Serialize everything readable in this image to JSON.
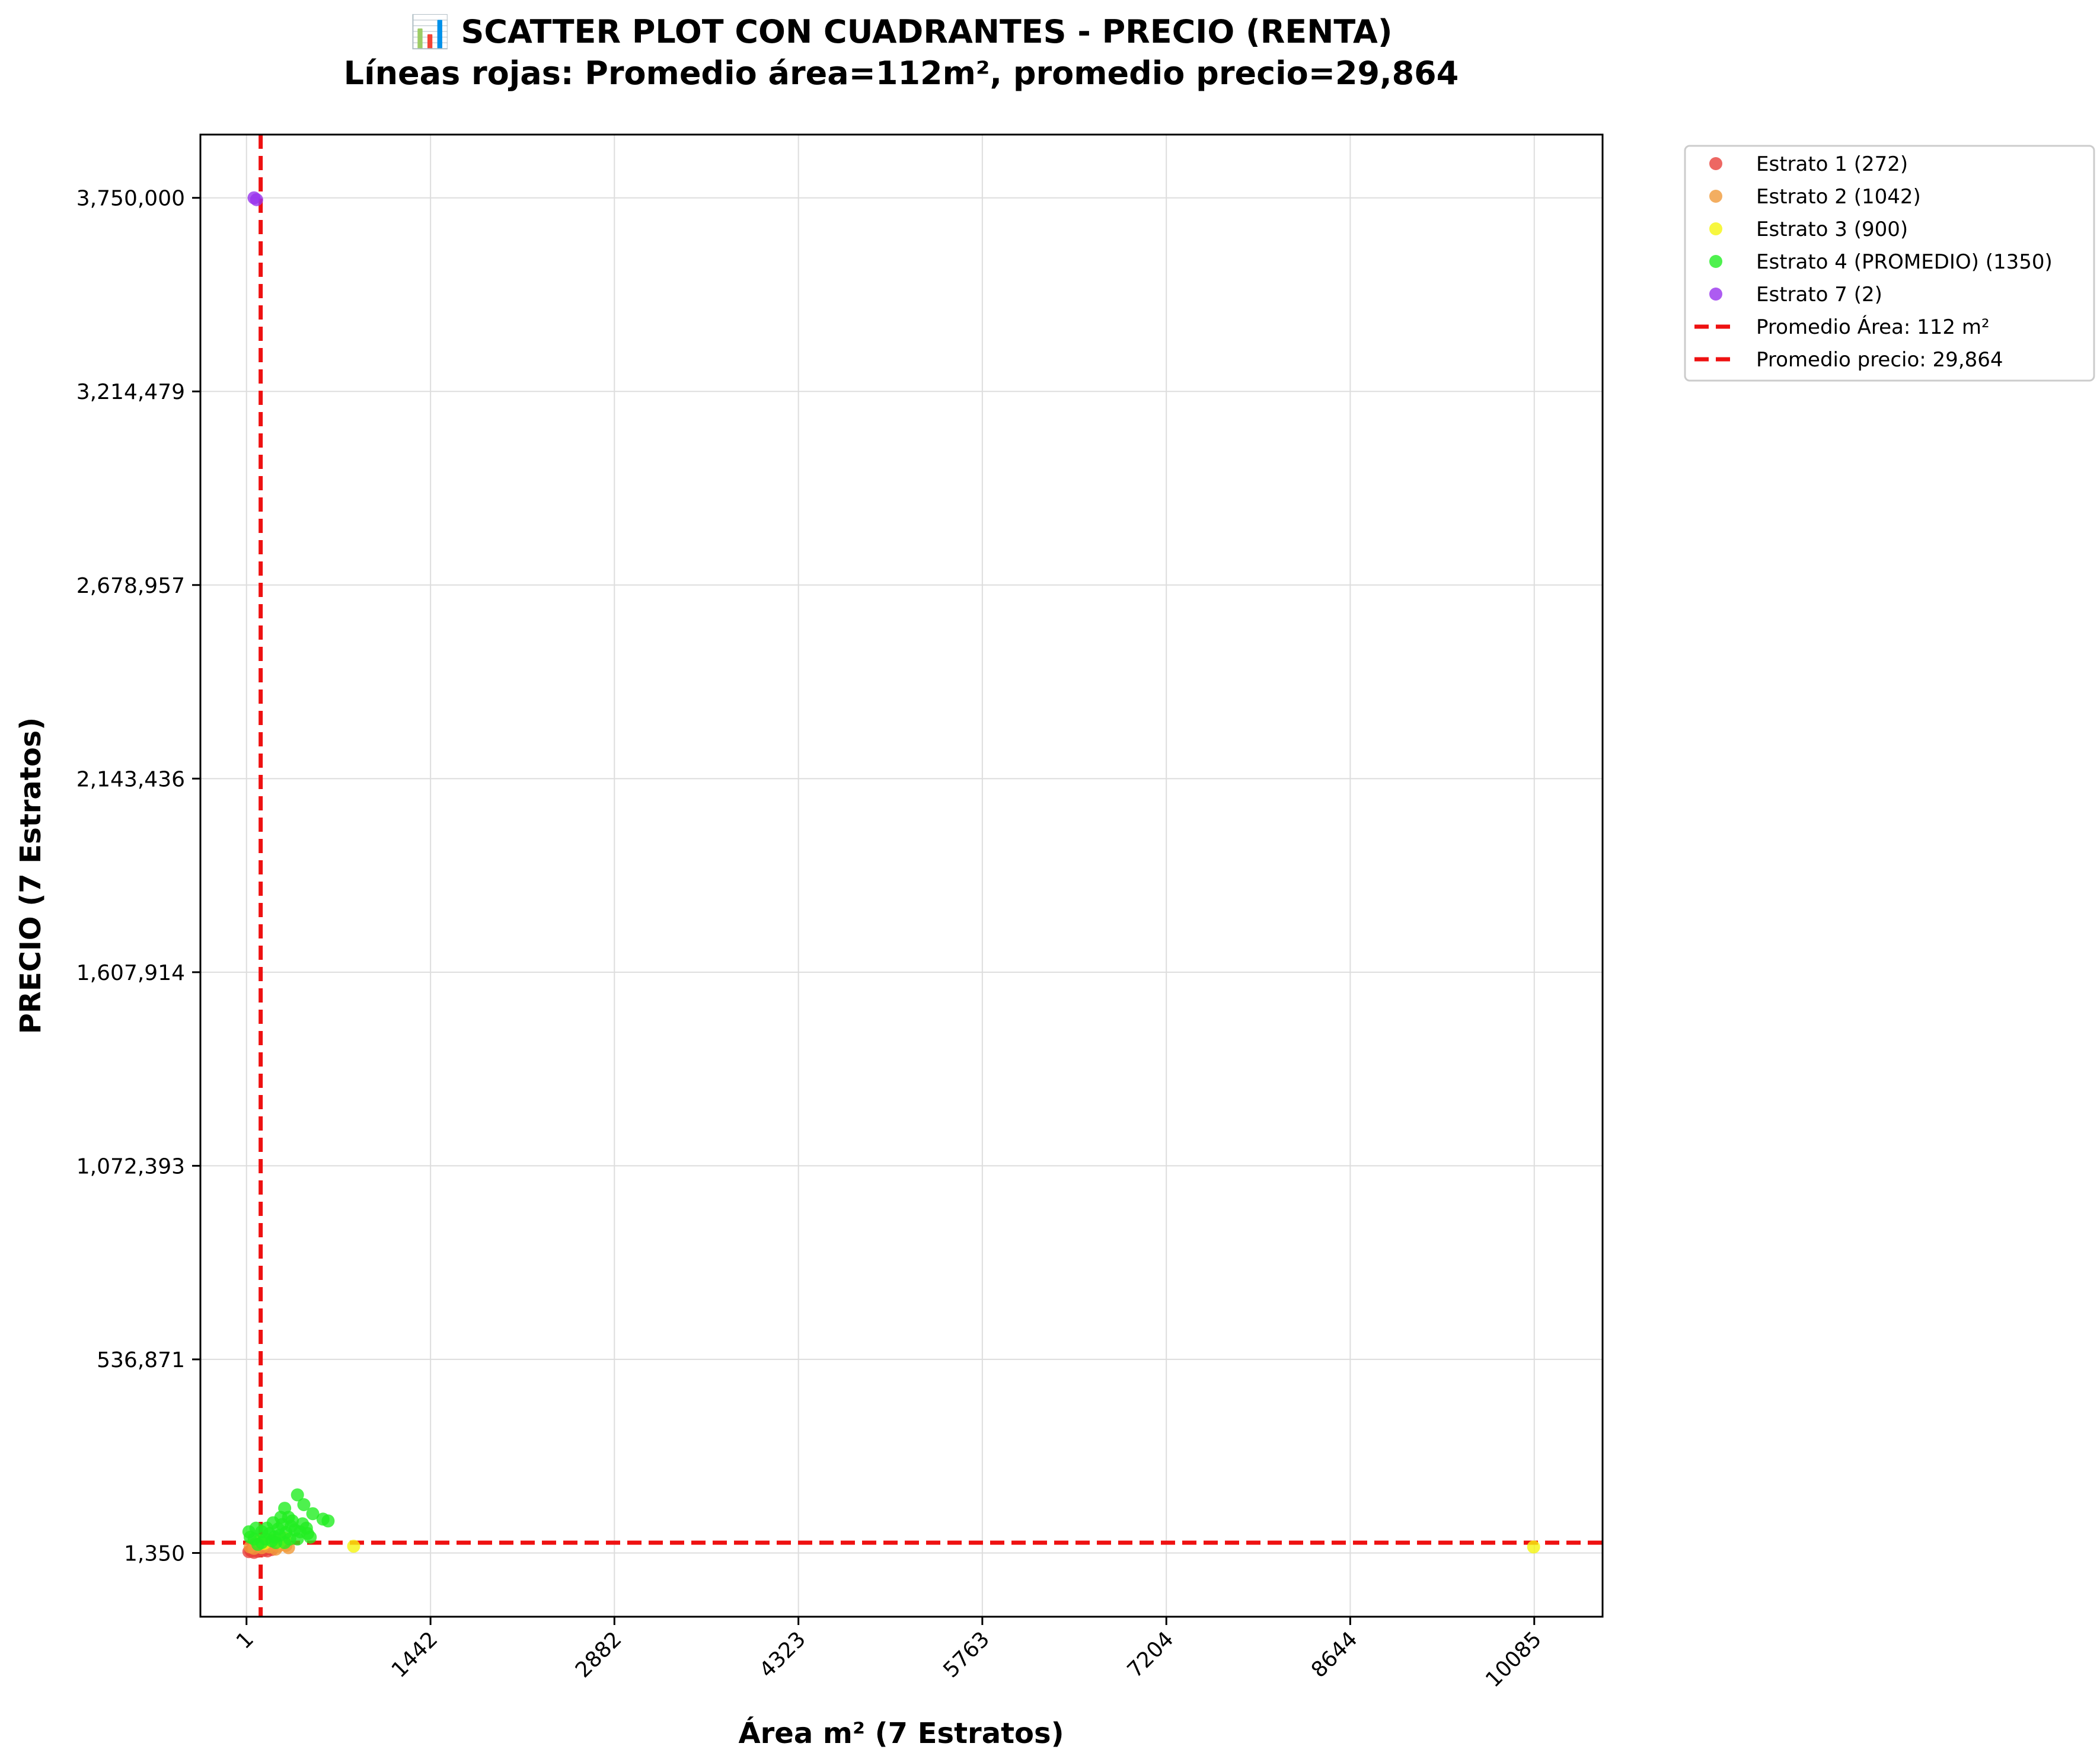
{
  "chart_data": {
    "type": "scatter",
    "title": "📊 SCATTER PLOT CON CUADRANTES - PRECIO (RENTA)",
    "subtitle": "Líneas rojas: Promedio área=112m², promedio precio=29,864",
    "xlabel": "Área m² (7 Estratos)",
    "ylabel": "PRECIO (7 Estratos)",
    "xlim": [
      -360,
      10620
    ],
    "ylim": [
      -175000,
      3925000
    ],
    "xticks": [
      1,
      1442,
      2882,
      4323,
      5763,
      7204,
      8644,
      10085
    ],
    "xtick_labels": [
      "1",
      "1442",
      "2882",
      "4323",
      "5763",
      "7204",
      "8644",
      "10085"
    ],
    "yticks": [
      1350,
      536871,
      1072393,
      1607914,
      2143436,
      2678957,
      3214479,
      3750000
    ],
    "ytick_labels": [
      "1,350",
      "536,871",
      "1,072,393",
      "1,607,914",
      "2,143,436",
      "2,678,957",
      "3,214,479",
      "3,750,000"
    ],
    "grid": true,
    "legend_position": "outside-right",
    "ref_lines": [
      {
        "orientation": "vertical",
        "value": 112,
        "label": "Promedio Área: 112 m²",
        "color": "#ee1111"
      },
      {
        "orientation": "horizontal",
        "value": 29864,
        "label": "Promedio precio: 29,864",
        "color": "#ee1111"
      }
    ],
    "series": [
      {
        "name": "Estrato 1 (272)",
        "color": "#e8413c",
        "points": [
          [
            20,
            5000
          ],
          [
            35,
            8000
          ],
          [
            45,
            7000
          ],
          [
            60,
            3000
          ],
          [
            75,
            9000
          ],
          [
            90,
            6000
          ],
          [
            110,
            10000
          ],
          [
            130,
            8000
          ],
          [
            150,
            12000
          ],
          [
            165,
            7000
          ],
          [
            180,
            15000
          ],
          [
            200,
            11000
          ],
          [
            55,
            14000
          ],
          [
            85,
            16000
          ]
        ]
      },
      {
        "name": "Estrato 2 (1042)",
        "color": "#f09a3a",
        "points": [
          [
            30,
            18000
          ],
          [
            60,
            14000
          ],
          [
            95,
            22000
          ],
          [
            120,
            16000
          ],
          [
            150,
            24000
          ],
          [
            180,
            18000
          ],
          [
            210,
            28000
          ],
          [
            250,
            20000
          ],
          [
            280,
            30000
          ],
          [
            310,
            22000
          ],
          [
            230,
            12000
          ],
          [
            170,
            30000
          ],
          [
            70,
            26000
          ],
          [
            330,
            16000
          ]
        ]
      },
      {
        "name": "Estrato 3 (900)",
        "color": "#f5f50f",
        "points": [
          [
            840,
            20000
          ],
          [
            10080,
            18000
          ],
          [
            100,
            35000
          ],
          [
            140,
            28000
          ],
          [
            200,
            38000
          ],
          [
            260,
            32000
          ],
          [
            300,
            42000
          ]
        ]
      },
      {
        "name": "Estrato 4 (PROMEDIO) (1350)",
        "color": "#22ee22",
        "points": [
          [
            400,
            162000
          ],
          [
            300,
            125000
          ],
          [
            330,
            100000
          ],
          [
            450,
            135000
          ],
          [
            520,
            110000
          ],
          [
            600,
            95000
          ],
          [
            640,
            90000
          ],
          [
            280,
            80000
          ],
          [
            350,
            75000
          ],
          [
            420,
            60000
          ],
          [
            470,
            70000
          ],
          [
            380,
            65000
          ],
          [
            260,
            50000
          ],
          [
            220,
            45000
          ],
          [
            200,
            35000
          ],
          [
            180,
            55000
          ],
          [
            150,
            40000
          ],
          [
            120,
            30000
          ],
          [
            90,
            25000
          ],
          [
            60,
            40000
          ],
          [
            30,
            45000
          ],
          [
            20,
            60000
          ],
          [
            250,
            68000
          ],
          [
            310,
            58000
          ],
          [
            160,
            70000
          ],
          [
            440,
            82000
          ],
          [
            210,
            85000
          ],
          [
            270,
            100000
          ],
          [
            360,
            90000
          ],
          [
            480,
            55000
          ],
          [
            500,
            45000
          ],
          [
            340,
            40000
          ],
          [
            120,
            60000
          ],
          [
            75,
            70000
          ],
          [
            400,
            40000
          ],
          [
            300,
            30000
          ],
          [
            230,
            30000
          ]
        ]
      },
      {
        "name": "Estrato 7 (2)",
        "color": "#9933ee",
        "points": [
          [
            60,
            3750000
          ],
          [
            80,
            3745000
          ]
        ]
      }
    ]
  }
}
